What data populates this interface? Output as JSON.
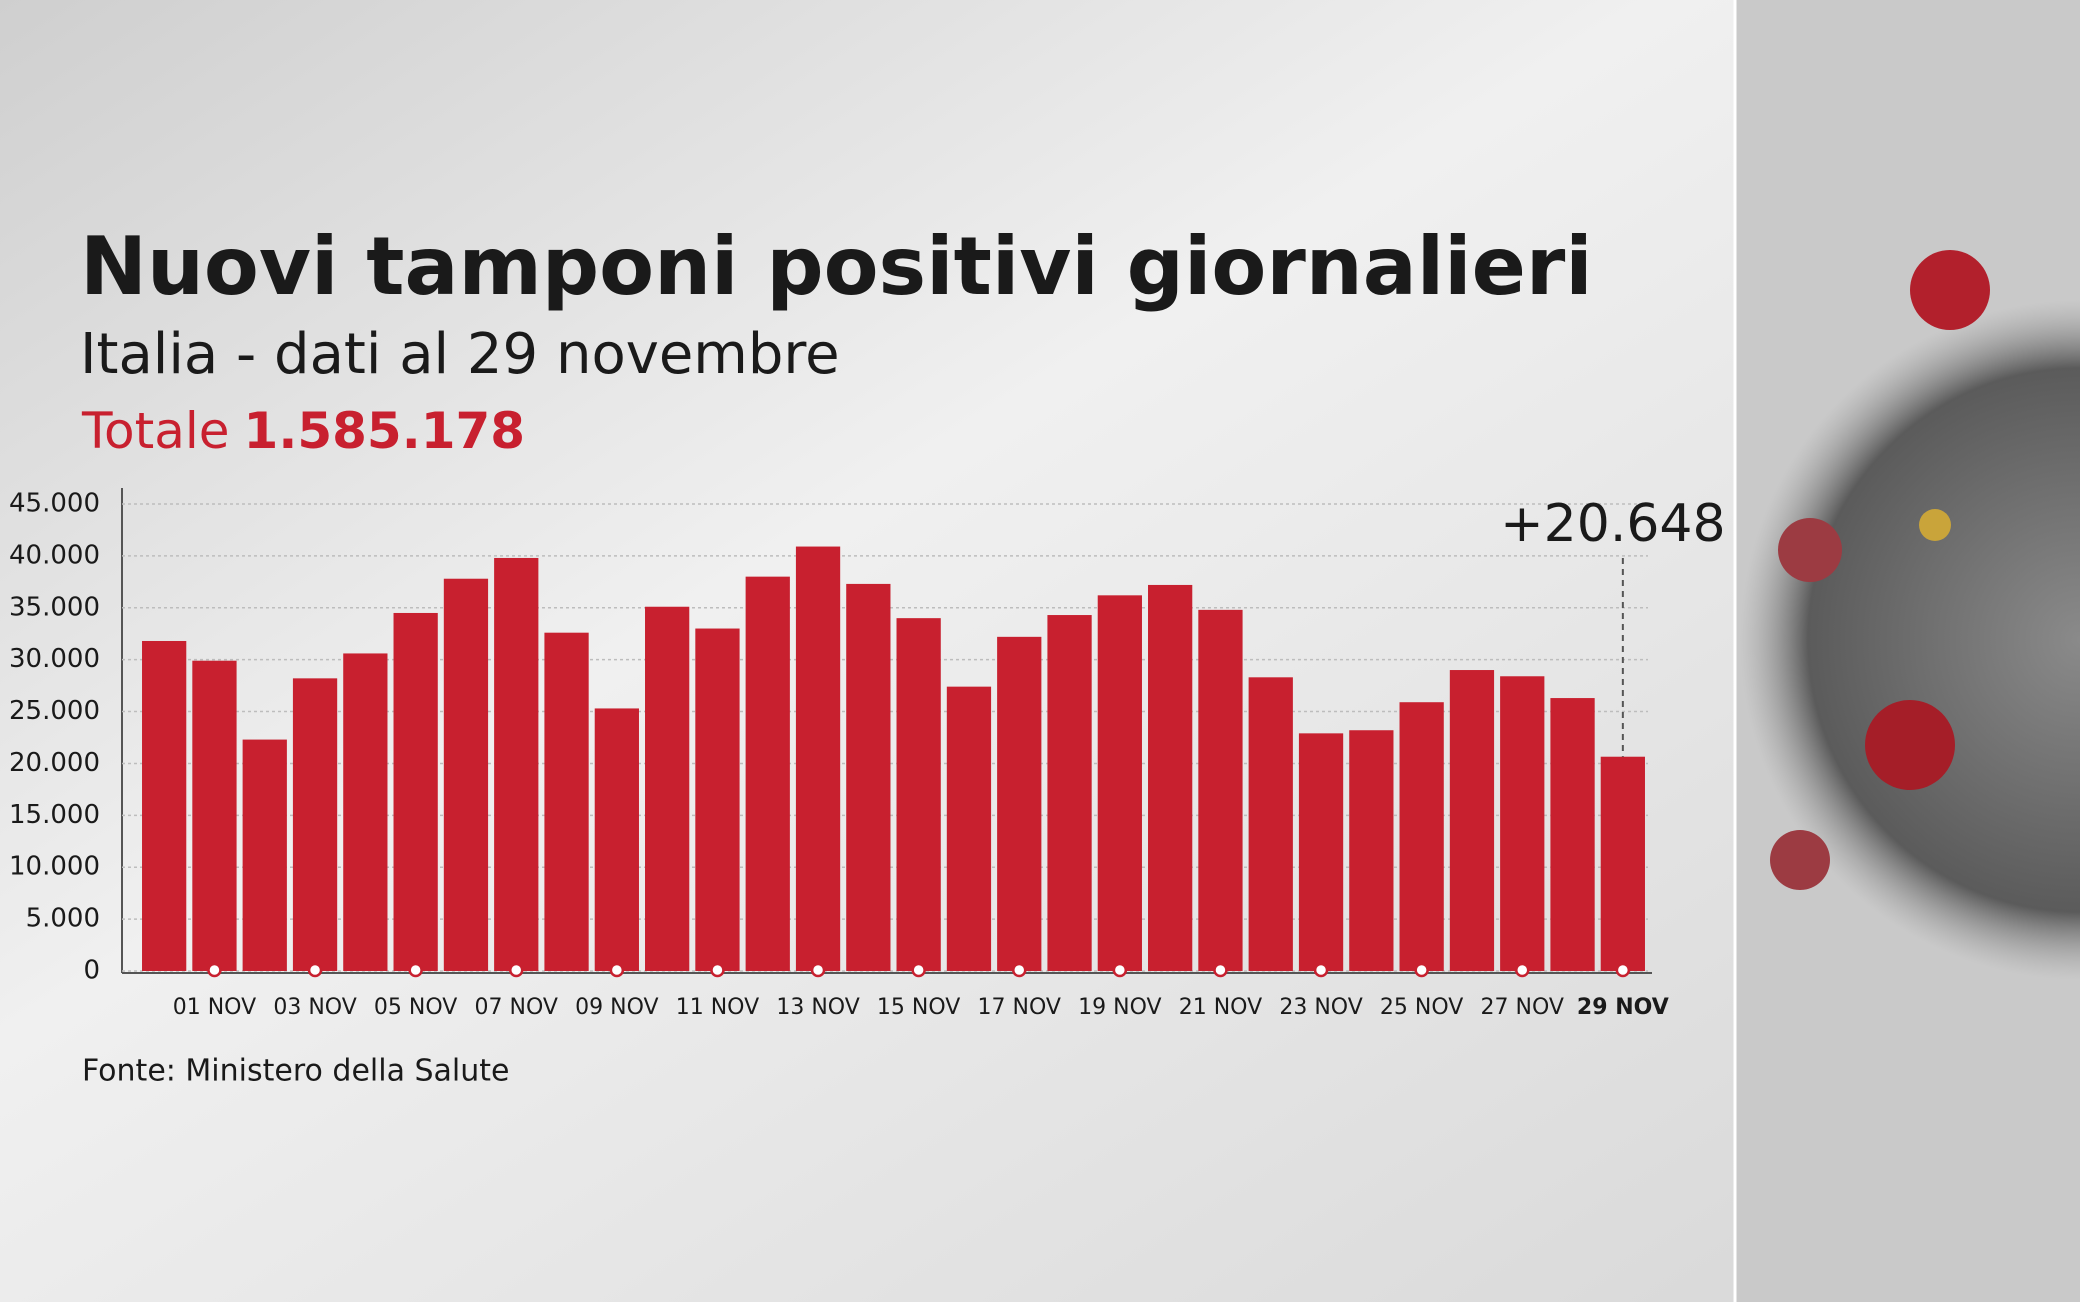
{
  "chart_data": {
    "type": "bar",
    "title": "Nuovi tamponi positivi giornalieri",
    "subtitle": "Italia - dati al 29 novembre",
    "total_label": "Totale",
    "total_value": "1.585.178",
    "annotation": "+20.648",
    "source": "Fonte: Ministero della Salute",
    "categories": [
      null,
      "01 NOV",
      null,
      "03 NOV",
      null,
      "05 NOV",
      null,
      "07 NOV",
      null,
      "09 NOV",
      null,
      "11 NOV",
      null,
      "13 NOV",
      null,
      "15 NOV",
      null,
      "17 NOV",
      null,
      "19 NOV",
      null,
      "21 NOV",
      null,
      "23 NOV",
      null,
      "25 NOV",
      null,
      "27 NOV",
      null,
      "29 NOV"
    ],
    "values": [
      31800,
      29900,
      22300,
      28200,
      30600,
      34500,
      37800,
      39800,
      32600,
      25300,
      35100,
      33000,
      38000,
      40900,
      37300,
      34000,
      27400,
      32200,
      34300,
      36200,
      37200,
      34800,
      28300,
      22900,
      23200,
      25900,
      29000,
      28400,
      26300,
      20648
    ],
    "color": "#c8202f",
    "ylim": [
      0,
      45000
    ],
    "yticks": [
      0,
      {
        "value": 5000,
        "label": "5.000"
      },
      {
        "value": 10000,
        "label": "10.000"
      },
      {
        "value": 15000,
        "label": "15.000"
      },
      {
        "value": 20000,
        "label": "20.000"
      },
      {
        "value": 25000,
        "label": "25.000"
      },
      {
        "value": 30000,
        "label": "30.000"
      },
      {
        "value": 35000,
        "label": "35.000"
      },
      {
        "value": 40000,
        "label": "40.000"
      },
      {
        "value": 45000,
        "label": "45.000"
      }
    ],
    "grid": true
  }
}
